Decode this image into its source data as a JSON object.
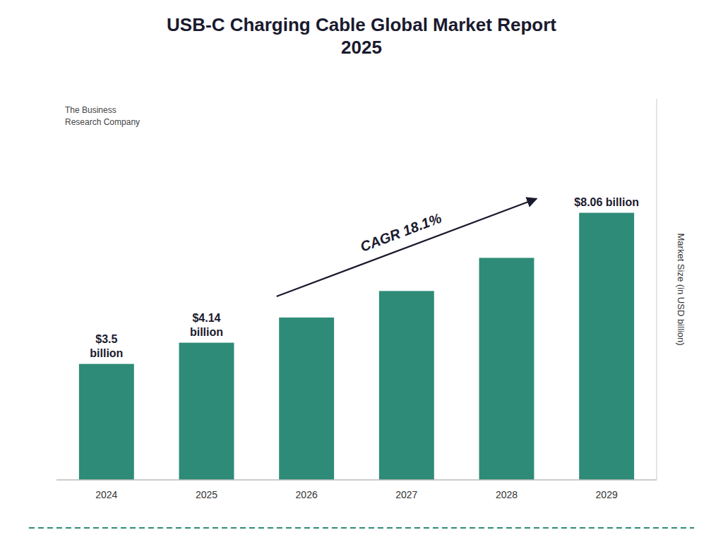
{
  "chart_data": {
    "type": "bar",
    "title": "USB-C Charging Cable Global Market Report\n2025",
    "y_label": "Market Size (in USD billion)",
    "categories": [
      "2024",
      "2025",
      "2026",
      "2027",
      "2028",
      "2029"
    ],
    "values": [
      3.5,
      4.14,
      4.9,
      5.7,
      6.7,
      8.06
    ],
    "value_labels": [
      "$3.5\nbillion",
      "$4.14\nbillion",
      null,
      null,
      null,
      "$8.06 billion"
    ],
    "data_labels": true,
    "color": "#2e8b77",
    "ylim": [
      0,
      11.5
    ],
    "yticks": [],
    "tick_labels": "x",
    "grid": false,
    "annotations": [
      {
        "text": "CAGR 18.1%"
      },
      {
        "text": "The Business\nResearch Company"
      }
    ]
  }
}
